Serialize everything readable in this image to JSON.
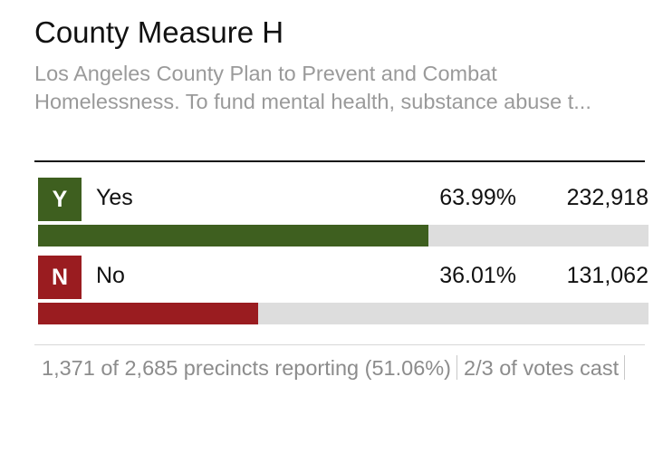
{
  "measure": {
    "title": "County Measure H",
    "description": "Los Angeles County Plan to Prevent and Combat Homelessness. To fund mental health, substance abuse t..."
  },
  "results": [
    {
      "badge": "Y",
      "label": "Yes",
      "percent": "63.99%",
      "votes": "232,918",
      "share": 0.6399,
      "color": "#3e5f1f"
    },
    {
      "badge": "N",
      "label": "No",
      "percent": "36.01%",
      "votes": "131,062",
      "share": 0.3601,
      "color": "#9a1c20"
    }
  ],
  "footer": {
    "precincts": "1,371 of 2,685 precincts reporting (51.06%)",
    "votes_cast": "2/3 of votes cast"
  },
  "colors": {
    "track": "#dddddd",
    "description_text": "#9a9a9a",
    "footer_text": "#8c8c8c"
  }
}
